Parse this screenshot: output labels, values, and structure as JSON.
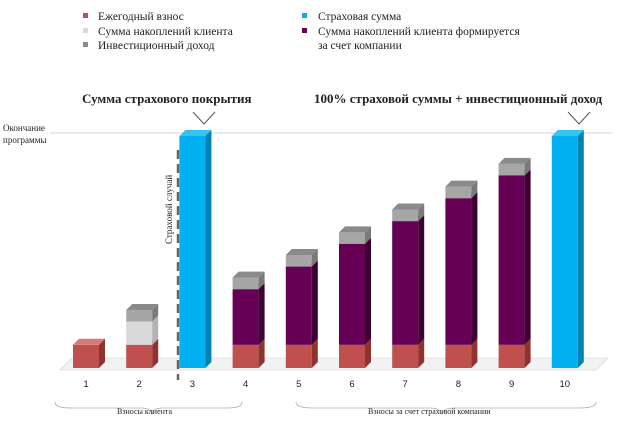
{
  "legend": [
    {
      "label": "Ежегодный взнос",
      "color": "#c0504d",
      "key": "annual"
    },
    {
      "label": "Сумма накоплений клиента",
      "color": "#d9d9d9",
      "key": "client"
    },
    {
      "label": "Инвестиционный доход",
      "color": "#a6a6a6",
      "key": "invest"
    },
    {
      "label": "Страховая сумма",
      "color": "#00b0f0",
      "key": "insured"
    },
    {
      "label": "Сумма накоплений клиента формируется",
      "label2": "за счет компании",
      "color": "#660055",
      "key": "company"
    }
  ],
  "headings": {
    "left": "Сумма страхового покрытия",
    "right": "100% страховой суммы + инвестиционный доход"
  },
  "annotations": {
    "end_line1": "Окончание",
    "end_line2": "программы",
    "insured_event": "Страховой случай",
    "client_contrib": "Взносы клиента",
    "company_contrib": "Взносы за счет страховой компании"
  },
  "chart_data": {
    "type": "bar",
    "stacked": true,
    "categories": [
      "1",
      "2",
      "3",
      "4",
      "5",
      "6",
      "7",
      "8",
      "9",
      "10"
    ],
    "max_value": 10,
    "series": [
      {
        "name": "Ежегодный взнос",
        "key": "annual",
        "values": [
          1,
          1,
          0,
          1,
          1,
          1,
          1,
          1,
          1,
          0
        ]
      },
      {
        "name": "Сумма накоплений клиента",
        "key": "client",
        "values": [
          0,
          1,
          0,
          0,
          0,
          0,
          0,
          0,
          0,
          0
        ]
      },
      {
        "name": "Сумма накоплений клиента формируется за счет компании",
        "key": "company",
        "values": [
          0,
          0,
          0,
          2795,
          3931,
          5068,
          6214,
          7364,
          8509,
          0
        ]
      },
      {
        "name": "Инвестиционный доход",
        "key": "invest",
        "values": [
          0,
          0.5,
          0,
          0.5,
          0.5,
          0.5,
          0.5,
          0.5,
          0.5,
          0
        ]
      },
      {
        "name": "Страховая сумма",
        "key": "insured",
        "values": [
          0,
          0,
          10,
          0,
          0,
          0,
          0,
          0,
          0,
          10
        ]
      }
    ]
  }
}
